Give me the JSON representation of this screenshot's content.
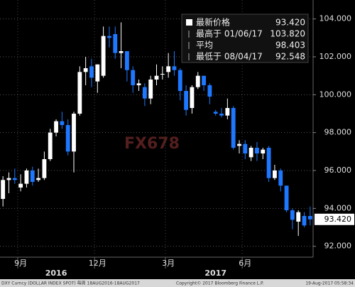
{
  "chart_data": {
    "type": "candlestick",
    "categories": [
      null,
      null,
      null,
      null,
      null,
      null,
      null,
      null,
      null,
      null,
      null,
      null,
      null,
      null,
      null,
      null,
      null,
      null,
      null,
      null,
      null,
      null,
      null,
      null,
      null,
      null,
      null,
      null,
      null,
      null,
      null,
      null,
      null,
      null,
      null,
      null,
      null,
      null,
      null,
      null,
      null,
      null,
      null,
      null,
      null,
      null,
      null,
      null,
      null,
      null,
      null,
      null,
      null
    ],
    "open": [
      94.5,
      95.5,
      95.6,
      95.1,
      95.3,
      96.0,
      95.5,
      95.6,
      96.6,
      98.0,
      98.6,
      98.4,
      97.0,
      99.0,
      101.2,
      101.5,
      100.7,
      101.0,
      103.1,
      103.2,
      102.2,
      102.3,
      101.3,
      100.5,
      100.4,
      99.8,
      100.8,
      101.1,
      101.2,
      101.5,
      101.3,
      100.2,
      99.3,
      100.4,
      101.0,
      100.5,
      99.1,
      99.0,
      98.9,
      99.3,
      97.3,
      97.4,
      96.7,
      97.2,
      96.9,
      97.2,
      95.6,
      96.0,
      95.2,
      93.9,
      93.3,
      93.6,
      93.6
    ],
    "high": [
      95.7,
      95.9,
      96.1,
      95.8,
      96.1,
      96.2,
      96.1,
      97.0,
      98.2,
      98.7,
      99.1,
      98.7,
      99.1,
      101.5,
      102.0,
      101.9,
      101.6,
      103.6,
      103.6,
      103.6,
      103.82,
      102.3,
      101.5,
      100.8,
      100.6,
      101.0,
      101.6,
      101.5,
      102.2,
      102.3,
      101.4,
      100.5,
      100.5,
      101.2,
      101.0,
      100.6,
      99.2,
      99.3,
      99.8,
      99.4,
      97.6,
      97.6,
      97.3,
      97.5,
      97.2,
      97.3,
      96.3,
      96.1,
      95.2,
      94.0,
      93.9,
      93.8,
      94.1
    ],
    "low": [
      94.1,
      94.8,
      95.3,
      94.9,
      95.1,
      95.2,
      95.4,
      95.5,
      96.5,
      97.8,
      98.2,
      96.8,
      95.9,
      98.9,
      100.5,
      100.4,
      100.1,
      100.9,
      102.5,
      101.9,
      101.4,
      100.7,
      100.1,
      100.2,
      99.4,
      99.5,
      100.5,
      100.8,
      100.9,
      101.0,
      99.7,
      98.9,
      99.0,
      100.3,
      100.2,
      99.5,
      98.9,
      98.8,
      98.7,
      97.1,
      96.9,
      96.6,
      96.5,
      96.5,
      96.6,
      95.4,
      95.5,
      94.9,
      93.8,
      92.9,
      92.548,
      93.0,
      93.1
    ],
    "close": [
      95.5,
      95.6,
      95.5,
      95.3,
      96.0,
      95.4,
      95.6,
      96.6,
      98.0,
      98.6,
      98.4,
      97.0,
      99.0,
      101.2,
      101.4,
      100.9,
      101.6,
      103.1,
      103.0,
      102.2,
      102.3,
      101.3,
      100.5,
      100.6,
      99.8,
      100.8,
      101.0,
      101.1,
      101.5,
      101.3,
      100.2,
      99.2,
      100.4,
      101.0,
      100.5,
      99.9,
      99.0,
      98.9,
      99.3,
      97.2,
      97.4,
      96.9,
      97.2,
      96.9,
      97.1,
      95.6,
      96.0,
      95.2,
      93.9,
      93.4,
      93.8,
      93.1,
      93.42
    ],
    "up_color": "#ffffff",
    "down_color": "#1e78ff",
    "ylim": [
      91.5,
      105
    ],
    "yticks": [
      {
        "value": 92,
        "label": "92.000"
      },
      {
        "value": 94,
        "label": "94.000"
      },
      {
        "value": 96,
        "label": "96.000"
      },
      {
        "value": 98,
        "label": "98.000"
      },
      {
        "value": 100,
        "label": "100.000"
      },
      {
        "value": 102,
        "label": "102.000"
      },
      {
        "value": 104,
        "label": "104.000"
      }
    ],
    "xticks": [
      {
        "value": 3,
        "label": "9月"
      },
      {
        "value": 16,
        "label": "12月"
      },
      {
        "value": 28,
        "label": "3月"
      },
      {
        "value": 41,
        "label": "6月"
      }
    ],
    "year_ticks": [
      {
        "value": 9,
        "label": "2016"
      },
      {
        "value": 36,
        "label": "2017"
      }
    ],
    "grid": true,
    "last_price": {
      "value": 93.42,
      "label": "93.420"
    },
    "legend": [
      {
        "name": "最新价格",
        "value": "93.420"
      },
      {
        "name": "最高于 01/06/17",
        "value": "103.820"
      },
      {
        "name": "平均",
        "value": "98.403"
      },
      {
        "name": "最低于 08/04/17",
        "value": "92.548"
      }
    ],
    "watermark": "FX678",
    "footer": [
      "DXY Curncy (DOLLAR INDEX SPOT) 每周 18AUG2016-18AUG2017",
      "Copyright© 2017 Bloomberg Finance L.P.",
      "19-Aug-2017 05:58:34"
    ]
  }
}
